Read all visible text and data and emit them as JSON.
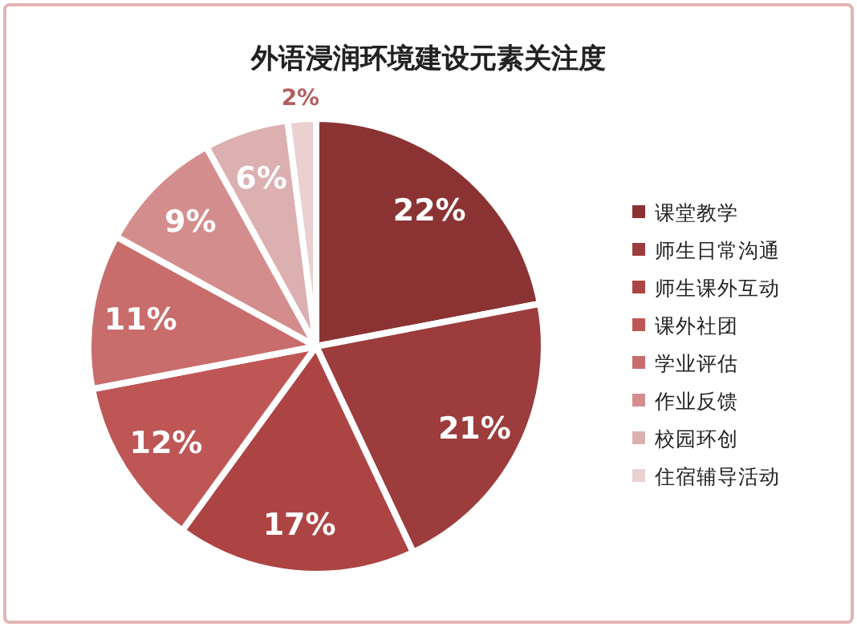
{
  "chart_data": {
    "type": "pie",
    "title": "外语浸润环境建设元素关注度",
    "categories": [
      "课堂教学",
      "师生日常沟通",
      "师生课外互动",
      "课外社团",
      "学业评估",
      "作业反馈",
      "校园环创",
      "住宿辅导活动"
    ],
    "values": [
      22,
      21,
      17,
      12,
      11,
      9,
      6,
      2
    ],
    "colors": [
      "#8b3333",
      "#9c3c3c",
      "#ad4444",
      "#bf5656",
      "#c96c6c",
      "#d48d8d",
      "#dcb0b0",
      "#ead0d0"
    ],
    "value_labels": [
      "22%",
      "21%",
      "17%",
      "12%",
      "11%",
      "9%",
      "6%",
      "2%"
    ],
    "legend": "right"
  }
}
